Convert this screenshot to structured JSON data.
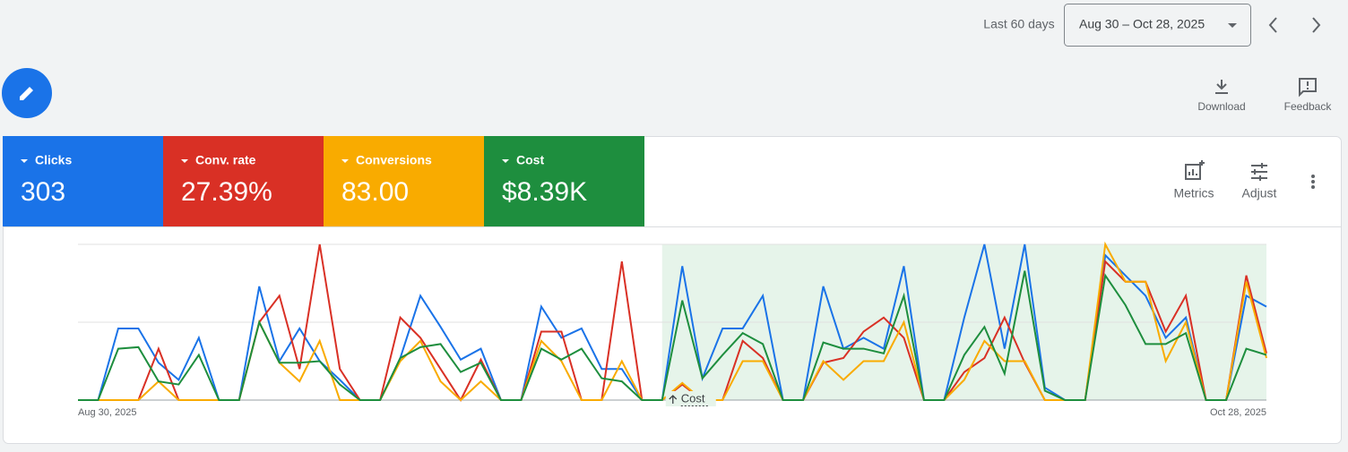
{
  "header": {
    "range_label": "Last 60 days",
    "date_range": "Aug 30 – Oct 28, 2025"
  },
  "actions": {
    "download": "Download",
    "feedback": "Feedback",
    "metrics": "Metrics",
    "adjust": "Adjust"
  },
  "chart_data": {
    "type": "line",
    "categories": [
      "Aug 30, 2025",
      null,
      null,
      null,
      null,
      null,
      null,
      null,
      null,
      null,
      null,
      null,
      null,
      null,
      null,
      null,
      null,
      null,
      null,
      null,
      null,
      null,
      null,
      null,
      null,
      null,
      null,
      null,
      null,
      null,
      null,
      null,
      null,
      null,
      null,
      null,
      null,
      null,
      null,
      null,
      null,
      null,
      null,
      null,
      null,
      null,
      null,
      null,
      null,
      null,
      null,
      null,
      null,
      null,
      null,
      null,
      null,
      null,
      null,
      "Oct 28, 2025"
    ],
    "ylim": [
      0,
      100
    ],
    "gridlines": [
      0,
      50,
      100
    ],
    "highlight": {
      "start": 29,
      "end": 59,
      "color": "#e6f4ea"
    },
    "annotation": "Cost",
    "series": [
      {
        "name": "Clicks",
        "total": "303",
        "color": "#1a73e8",
        "values": [
          0,
          0,
          46,
          46,
          24,
          13,
          40,
          0,
          0,
          73,
          25,
          46,
          25,
          13,
          0,
          0,
          27,
          67,
          47,
          26,
          33,
          0,
          0,
          60,
          40,
          46,
          20,
          20,
          0,
          0,
          86,
          14,
          46,
          46,
          67,
          0,
          0,
          73,
          33,
          40,
          33,
          86,
          0,
          0,
          53,
          100,
          33,
          100,
          8,
          0,
          0,
          93,
          80,
          67,
          40,
          53,
          0,
          0,
          67,
          60
        ]
      },
      {
        "name": "Conv. rate",
        "total": "27.39%",
        "color": "#d93025",
        "values": [
          0,
          0,
          0,
          0,
          33,
          0,
          0,
          0,
          0,
          50,
          67,
          20,
          100,
          20,
          0,
          0,
          53,
          40,
          20,
          0,
          26,
          0,
          0,
          44,
          44,
          0,
          0,
          89,
          0,
          0,
          10,
          0,
          0,
          38,
          27,
          0,
          0,
          24,
          27,
          44,
          53,
          40,
          0,
          0,
          18,
          27,
          53,
          24,
          0,
          0,
          0,
          89,
          76,
          76,
          44,
          67,
          0,
          0,
          80,
          30
        ]
      },
      {
        "name": "Conversions",
        "total": "83.00",
        "color": "#f9ab00",
        "values": [
          0,
          0,
          0,
          0,
          12,
          0,
          0,
          0,
          0,
          50,
          24,
          12,
          38,
          0,
          0,
          0,
          25,
          38,
          12,
          0,
          12,
          0,
          0,
          38,
          25,
          0,
          0,
          25,
          0,
          0,
          11,
          0,
          0,
          25,
          25,
          0,
          0,
          25,
          13,
          25,
          25,
          50,
          0,
          0,
          13,
          38,
          25,
          25,
          0,
          0,
          0,
          100,
          76,
          76,
          25,
          50,
          0,
          0,
          76,
          27
        ]
      },
      {
        "name": "Cost",
        "total": "$8.39K",
        "color": "#1e8e3e",
        "values": [
          0,
          0,
          33,
          34,
          12,
          10,
          29,
          0,
          0,
          50,
          24,
          24,
          25,
          10,
          0,
          0,
          27,
          34,
          36,
          18,
          24,
          0,
          0,
          33,
          26,
          33,
          14,
          12,
          0,
          0,
          64,
          14,
          29,
          43,
          36,
          0,
          0,
          37,
          33,
          33,
          30,
          67,
          0,
          0,
          29,
          47,
          17,
          83,
          6,
          0,
          0,
          80,
          61,
          36,
          36,
          43,
          0,
          0,
          33,
          29
        ]
      }
    ]
  }
}
